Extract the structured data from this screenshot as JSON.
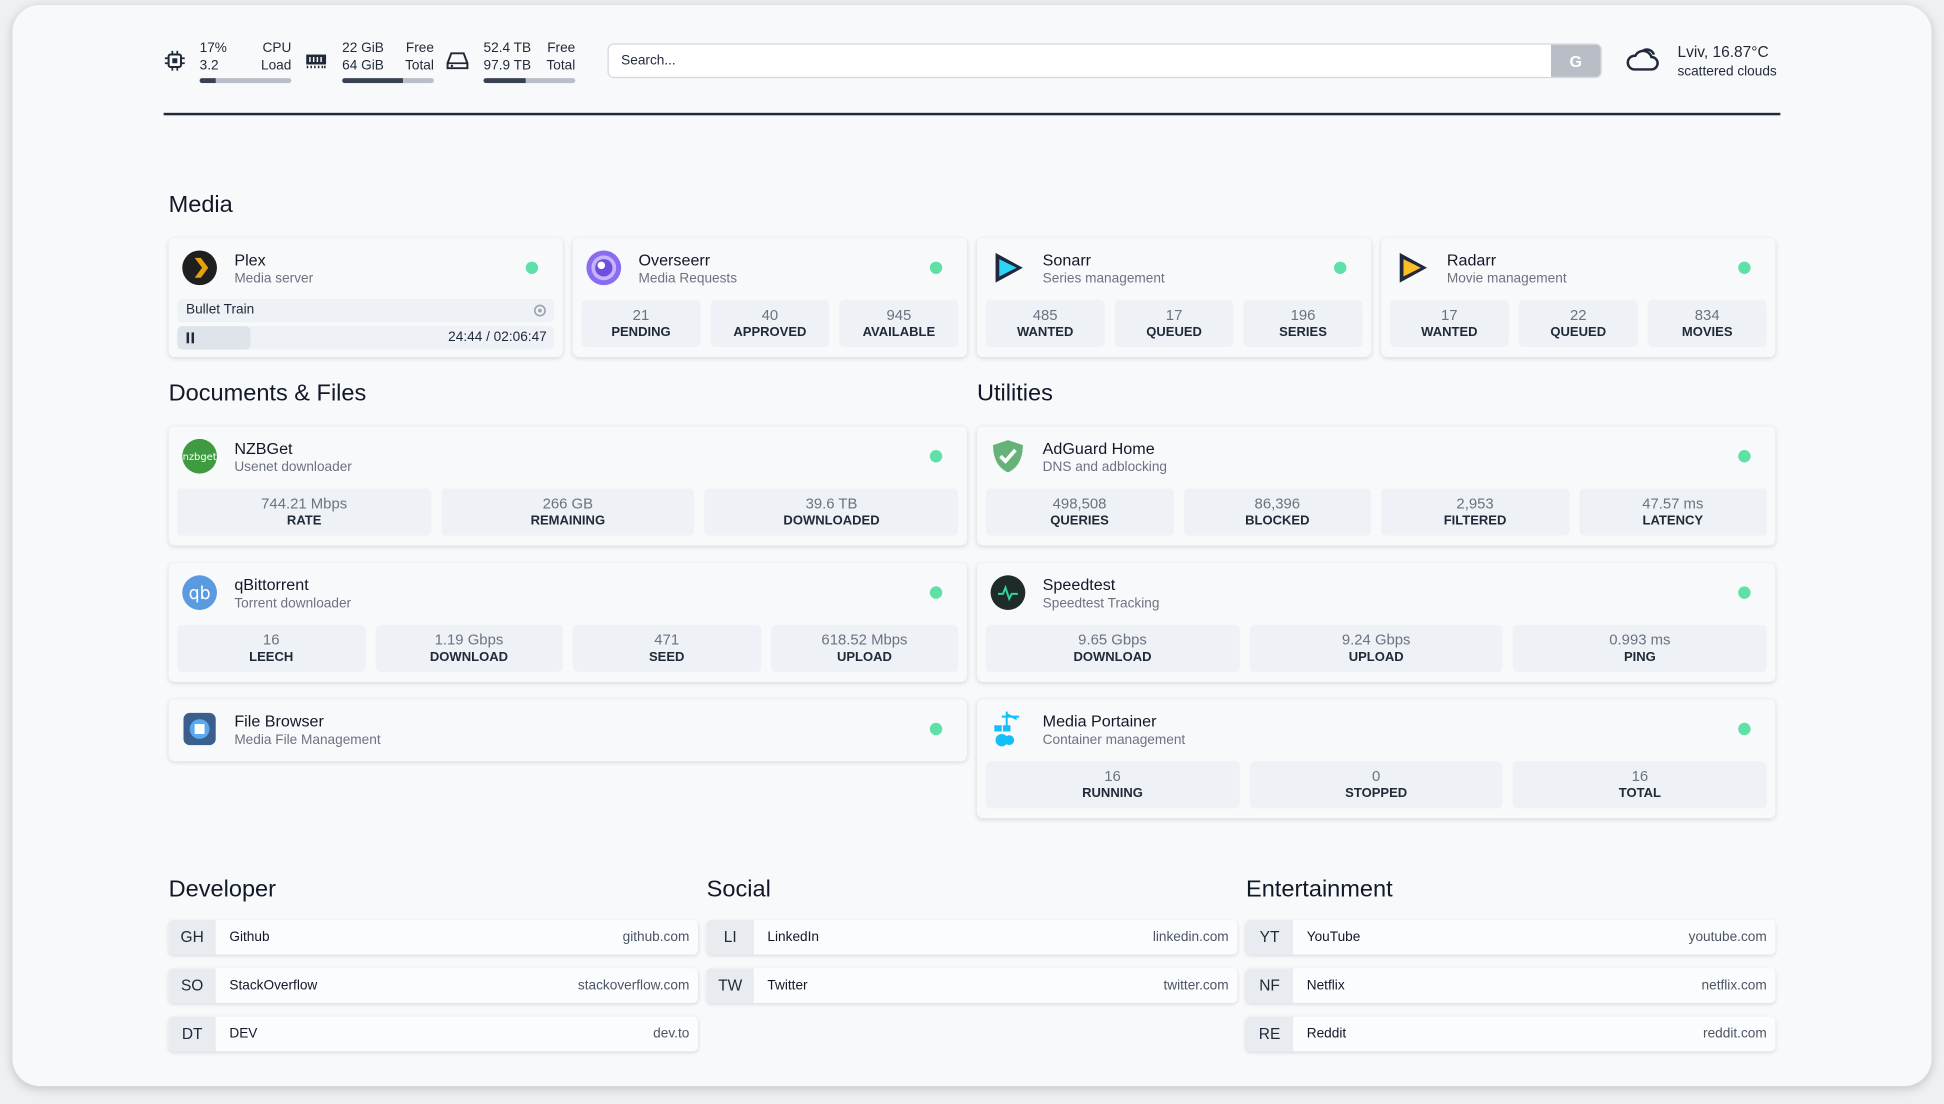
{
  "header": {
    "cpu": {
      "icon": "cpu-icon",
      "top_value": "17%",
      "top_label": "CPU",
      "bottom_value": "3.2",
      "bottom_label": "Load",
      "usage_percent": 17
    },
    "memory": {
      "icon": "memory-icon",
      "top_value": "22 GiB",
      "top_label": "Free",
      "bottom_value": "64 GiB",
      "bottom_label": "Total",
      "usage_percent": 66
    },
    "disk": {
      "icon": "hard-drive-icon",
      "top_value": "52.4 TB",
      "top_label": "Free",
      "bottom_value": "97.9 TB",
      "bottom_label": "Total",
      "usage_percent": 46
    },
    "search": {
      "placeholder": "Search...",
      "button_label": "G"
    },
    "weather": {
      "icon": "cloud-icon",
      "location_temp": "Lviv, 16.87°C",
      "condition": "scattered clouds"
    }
  },
  "sections": {
    "media": "Media",
    "documents": "Documents & Files",
    "utilities": "Utilities",
    "developer": "Developer",
    "social": "Social",
    "entertainment": "Entertainment"
  },
  "plex": {
    "title": "Plex",
    "subtitle": "Media server",
    "now_playing": "Bullet Train",
    "time": "24:44 / 02:06:47",
    "progress_percent": 19.5
  },
  "cards": {
    "media": [
      {
        "title": "Overseerr",
        "subtitle": "Media Requests",
        "icon": "overseerr-icon",
        "stats": [
          [
            "21",
            "PENDING"
          ],
          [
            "40",
            "APPROVED"
          ],
          [
            "945",
            "AVAILABLE"
          ]
        ]
      },
      {
        "title": "Sonarr",
        "subtitle": "Series management",
        "icon": "sonarr-icon",
        "stats": [
          [
            "485",
            "WANTED"
          ],
          [
            "17",
            "QUEUED"
          ],
          [
            "196",
            "SERIES"
          ]
        ]
      },
      {
        "title": "Radarr",
        "subtitle": "Movie management",
        "icon": "radarr-icon",
        "stats": [
          [
            "17",
            "WANTED"
          ],
          [
            "22",
            "QUEUED"
          ],
          [
            "834",
            "MOVIES"
          ]
        ]
      }
    ],
    "documents": [
      {
        "title": "NZBGet",
        "subtitle": "Usenet downloader",
        "icon": "nzbget-icon",
        "stats": [
          [
            "744.21 Mbps",
            "RATE"
          ],
          [
            "266 GB",
            "REMAINING"
          ],
          [
            "39.6 TB",
            "DOWNLOADED"
          ]
        ]
      },
      {
        "title": "qBittorrent",
        "subtitle": "Torrent downloader",
        "icon": "qbittorrent-icon",
        "stats": [
          [
            "16",
            "LEECH"
          ],
          [
            "1.19 Gbps",
            "DOWNLOAD"
          ],
          [
            "471",
            "SEED"
          ],
          [
            "618.52 Mbps",
            "UPLOAD"
          ]
        ]
      },
      {
        "title": "File Browser",
        "subtitle": "Media File Management",
        "icon": "file-browser-icon",
        "stats": []
      }
    ],
    "utilities": [
      {
        "title": "AdGuard Home",
        "subtitle": "DNS and adblocking",
        "icon": "adguard-icon",
        "stats": [
          [
            "498,508",
            "QUERIES"
          ],
          [
            "86,396",
            "BLOCKED"
          ],
          [
            "2,953",
            "FILTERED"
          ],
          [
            "47.57 ms",
            "LATENCY"
          ]
        ]
      },
      {
        "title": "Speedtest",
        "subtitle": "Speedtest Tracking",
        "icon": "speedtest-icon",
        "stats": [
          [
            "9.65 Gbps",
            "DOWNLOAD"
          ],
          [
            "9.24 Gbps",
            "UPLOAD"
          ],
          [
            "0.993 ms",
            "PING"
          ]
        ]
      },
      {
        "title": "Media Portainer",
        "subtitle": "Container management",
        "icon": "portainer-icon",
        "stats": [
          [
            "16",
            "RUNNING"
          ],
          [
            "0",
            "STOPPED"
          ],
          [
            "16",
            "TOTAL"
          ]
        ]
      }
    ]
  },
  "bookmarks": {
    "developer": [
      {
        "abbr": "GH",
        "name": "Github",
        "url": "github.com"
      },
      {
        "abbr": "SO",
        "name": "StackOverflow",
        "url": "stackoverflow.com"
      },
      {
        "abbr": "DT",
        "name": "DEV",
        "url": "dev.to"
      }
    ],
    "social": [
      {
        "abbr": "LI",
        "name": "LinkedIn",
        "url": "linkedin.com"
      },
      {
        "abbr": "TW",
        "name": "Twitter",
        "url": "twitter.com"
      }
    ],
    "entertainment": [
      {
        "abbr": "YT",
        "name": "YouTube",
        "url": "youtube.com"
      },
      {
        "abbr": "NF",
        "name": "Netflix",
        "url": "netflix.com"
      },
      {
        "abbr": "RE",
        "name": "Reddit",
        "url": "reddit.com"
      }
    ]
  },
  "colors": {
    "status_online": "#5fe0a6",
    "accent_dark": "#1f2937"
  }
}
